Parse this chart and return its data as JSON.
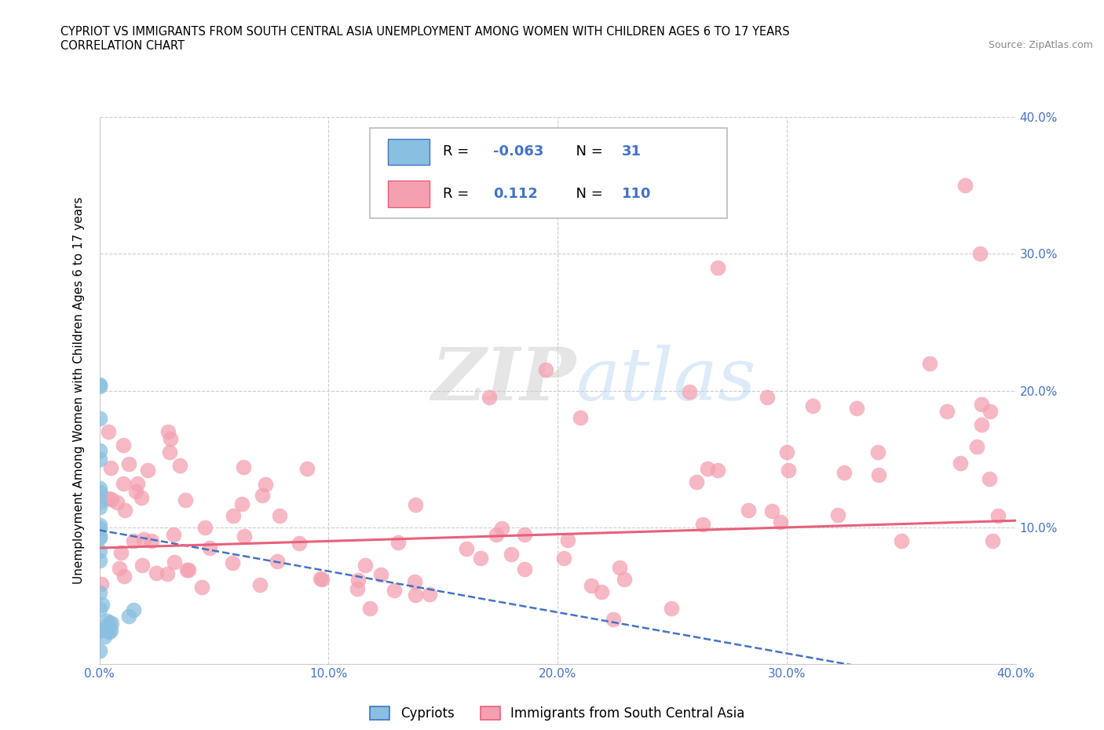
{
  "title_line1": "CYPRIOT VS IMMIGRANTS FROM SOUTH CENTRAL ASIA UNEMPLOYMENT AMONG WOMEN WITH CHILDREN AGES 6 TO 17 YEARS",
  "title_line2": "CORRELATION CHART",
  "source": "Source: ZipAtlas.com",
  "ylabel": "Unemployment Among Women with Children Ages 6 to 17 years",
  "xlim": [
    0.0,
    0.4
  ],
  "ylim": [
    0.0,
    0.4
  ],
  "xticks": [
    0.0,
    0.1,
    0.2,
    0.3,
    0.4
  ],
  "yticks": [
    0.0,
    0.1,
    0.2,
    0.3,
    0.4
  ],
  "xticklabels": [
    "0.0%",
    "10.0%",
    "20.0%",
    "30.0%",
    "40.0%"
  ],
  "yticklabels_left": [
    "",
    "",
    "",
    "",
    ""
  ],
  "yticklabels_right": [
    "",
    "10.0%",
    "20.0%",
    "30.0%",
    "40.0%"
  ],
  "grid_color": "#cccccc",
  "color_cypriot": "#89bfe0",
  "color_immigrant": "#f4a0b0",
  "color_cypriot_line": "#4472c4",
  "color_immigrant_line": "#e8607a",
  "legend_label1": "Cypriots",
  "legend_label2": "Immigrants from South Central Asia",
  "watermark_zip": "ZIP",
  "watermark_atlas": "atlas",
  "seed": 99
}
